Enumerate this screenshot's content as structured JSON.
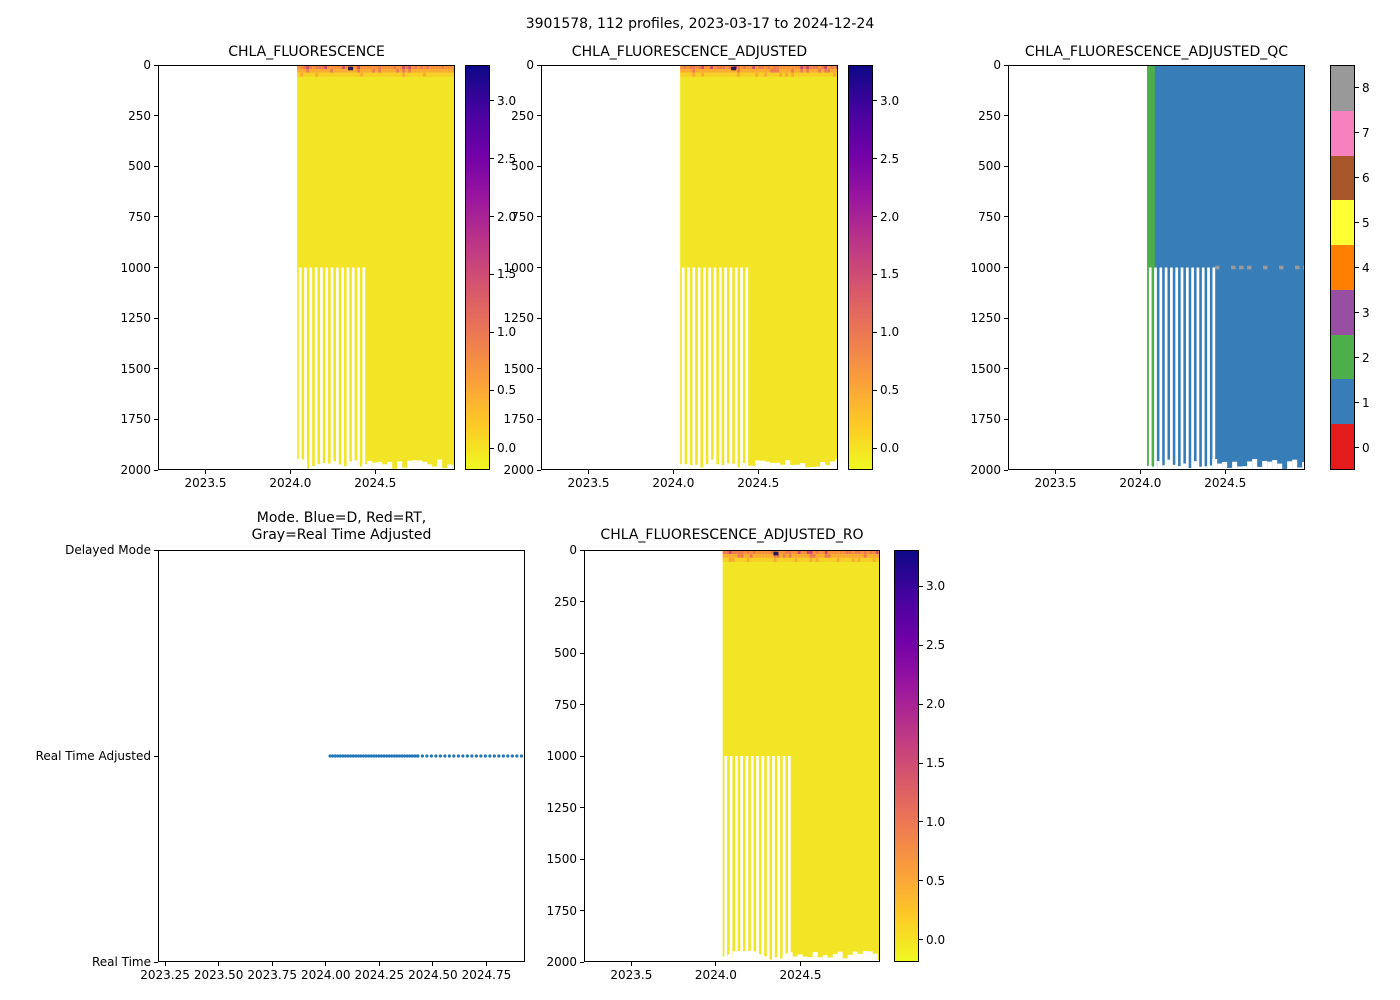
{
  "figure": {
    "title": "3901578, 112 profiles, 2023-03-17 to 2024-12-24"
  },
  "palette": {
    "plasma_top_to_bottom": [
      "#0d0887",
      "#46039f",
      "#7201a8",
      "#9c179e",
      "#bd3786",
      "#d8576b",
      "#ed7953",
      "#fa9e3b",
      "#fdc926",
      "#f0f921"
    ],
    "body_yellow": "#f2e525",
    "surface_red": "#cf4a6e",
    "surface_deep_orange": "#ed7953",
    "surface_orange": "#f78f3c",
    "surface_light_orange": "#fbaa33",
    "surface_yellow_orange": "#f7cf27",
    "dark_spot": "#2a1a52",
    "qc_blue": "#377eb8",
    "qc_green": "#4daf4a",
    "qc_gray": "#999999",
    "mode_dot": "#1f77b4",
    "set1": [
      "#e41a1c",
      "#377eb8",
      "#4daf4a",
      "#984ea3",
      "#ff7f00",
      "#ffff33",
      "#a65628",
      "#f781bf",
      "#999999"
    ]
  },
  "chart_data": [
    {
      "key": "chla",
      "type": "heatmap",
      "title": "CHLA_FLUORESCENCE",
      "x_range": [
        2023.22,
        2024.97
      ],
      "x_ticks": [
        {
          "v": 2023.5,
          "label": "2023.5"
        },
        {
          "v": 2024.0,
          "label": "2024.0"
        },
        {
          "v": 2024.5,
          "label": "2024.5"
        }
      ],
      "y_range": [
        2000,
        0
      ],
      "y_axis": "depth (m), 0 at top",
      "y_ticks": [
        {
          "v": 0,
          "label": "0"
        },
        {
          "v": 250,
          "label": "250"
        },
        {
          "v": 500,
          "label": "500"
        },
        {
          "v": 750,
          "label": "750"
        },
        {
          "v": 1000,
          "label": "1000"
        },
        {
          "v": 1250,
          "label": "1250"
        },
        {
          "v": 1500,
          "label": "1500"
        },
        {
          "v": 1750,
          "label": "1750"
        },
        {
          "v": 2000,
          "label": "2000"
        }
      ],
      "colorbar": {
        "kind": "continuous",
        "colormap": "plasma_reversed",
        "value_range": [
          -0.19,
          3.31
        ],
        "ticks": [
          {
            "v": 0,
            "label": "0.0"
          },
          {
            "v": 0.5,
            "label": "0.5"
          },
          {
            "v": 1,
            "label": "1.0"
          },
          {
            "v": 1.5,
            "label": "1.5"
          },
          {
            "v": 2,
            "label": "2.0"
          },
          {
            "v": 2.5,
            "label": "2.5"
          },
          {
            "v": 3,
            "label": "3.0"
          }
        ]
      },
      "profile_data": {
        "time_extent": [
          2024.04,
          2024.97
        ],
        "surface_bloom_depth_m": [
          0,
          58
        ],
        "surface_value_range": [
          0.3,
          3.2
        ],
        "background_value": 0.0,
        "shallow_window": [
          2024.05,
          2024.43
        ],
        "shallow_max_depth_m": 1000,
        "deep_max_depth_m": 1980,
        "dark_spot_time": 2024.34
      }
    },
    {
      "key": "adj",
      "type": "heatmap",
      "title": "CHLA_FLUORESCENCE_ADJUSTED",
      "x_range": [
        2023.22,
        2024.97
      ],
      "x_ticks": [
        {
          "v": 2023.5,
          "label": "2023.5"
        },
        {
          "v": 2024.0,
          "label": "2024.0"
        },
        {
          "v": 2024.5,
          "label": "2024.5"
        }
      ],
      "y_range": [
        2000,
        0
      ],
      "y_ticks": [
        {
          "v": 0,
          "label": "0"
        },
        {
          "v": 250,
          "label": "250"
        },
        {
          "v": 500,
          "label": "500"
        },
        {
          "v": 750,
          "label": "750"
        },
        {
          "v": 1000,
          "label": "1000"
        },
        {
          "v": 1250,
          "label": "1250"
        },
        {
          "v": 1500,
          "label": "1500"
        },
        {
          "v": 1750,
          "label": "1750"
        },
        {
          "v": 2000,
          "label": "2000"
        }
      ],
      "colorbar": {
        "kind": "continuous",
        "colormap": "plasma_reversed",
        "value_range": [
          -0.19,
          3.31
        ],
        "ticks": [
          {
            "v": 0,
            "label": "0.0"
          },
          {
            "v": 0.5,
            "label": "0.5"
          },
          {
            "v": 1,
            "label": "1.0"
          },
          {
            "v": 1.5,
            "label": "1.5"
          },
          {
            "v": 2,
            "label": "2.0"
          },
          {
            "v": 2.5,
            "label": "2.5"
          },
          {
            "v": 3,
            "label": "3.0"
          }
        ]
      },
      "profile_data": {
        "time_extent": [
          2024.04,
          2024.97
        ],
        "surface_bloom_depth_m": [
          0,
          58
        ],
        "surface_value_range": [
          0.3,
          3.2
        ],
        "background_value": 0.0,
        "shallow_window": [
          2024.05,
          2024.43
        ],
        "shallow_max_depth_m": 1000,
        "deep_max_depth_m": 1980,
        "dark_spot_time": 2024.34
      }
    },
    {
      "key": "qc",
      "type": "heatmap_qc",
      "title": "CHLA_FLUORESCENCE_ADJUSTED_QC",
      "x_range": [
        2023.22,
        2024.97
      ],
      "x_ticks": [
        {
          "v": 2023.5,
          "label": "2023.5"
        },
        {
          "v": 2024.0,
          "label": "2024.0"
        },
        {
          "v": 2024.5,
          "label": "2024.5"
        }
      ],
      "y_range": [
        2000,
        0
      ],
      "y_ticks": [
        {
          "v": 0,
          "label": "0"
        },
        {
          "v": 250,
          "label": "250"
        },
        {
          "v": 500,
          "label": "500"
        },
        {
          "v": 750,
          "label": "750"
        },
        {
          "v": 1000,
          "label": "1000"
        },
        {
          "v": 1250,
          "label": "1250"
        },
        {
          "v": 1500,
          "label": "1500"
        },
        {
          "v": 1750,
          "label": "1750"
        },
        {
          "v": 2000,
          "label": "2000"
        }
      ],
      "colorbar": {
        "kind": "discrete",
        "colormap": "Set1 (9 QC flags)",
        "ticks": [
          {
            "v": 0,
            "label": "0"
          },
          {
            "v": 1,
            "label": "1"
          },
          {
            "v": 2,
            "label": "2"
          },
          {
            "v": 3,
            "label": "3"
          },
          {
            "v": 4,
            "label": "4"
          },
          {
            "v": 5,
            "label": "5"
          },
          {
            "v": 6,
            "label": "6"
          },
          {
            "v": 7,
            "label": "7"
          },
          {
            "v": 8,
            "label": "8"
          }
        ]
      },
      "profile_data": {
        "time_extent": [
          2024.04,
          2024.97
        ],
        "dominant_flag": 1,
        "early_flag": {
          "value": 2,
          "time_window": [
            2024.04,
            2024.085
          ]
        },
        "gray_flag": {
          "value": 8,
          "depth_m": 1000,
          "time_window": [
            2024.44,
            2024.97
          ]
        },
        "shallow_window": [
          2024.05,
          2024.43
        ],
        "shallow_max_depth_m": 1000,
        "deep_max_depth_m": 1980
      }
    },
    {
      "key": "mode",
      "type": "scatter",
      "title_lines": [
        "Mode. Blue=D, Red=RT,",
        "Gray=Real Time Adjusted"
      ],
      "x_range": [
        2023.217,
        2024.93
      ],
      "x_ticks": [
        {
          "v": 2023.25,
          "label": "2023.25"
        },
        {
          "v": 2023.5,
          "label": "2023.50"
        },
        {
          "v": 2023.75,
          "label": "2023.75"
        },
        {
          "v": 2024.0,
          "label": "2024.00"
        },
        {
          "v": 2024.25,
          "label": "2024.25"
        },
        {
          "v": 2024.5,
          "label": "2024.50"
        },
        {
          "v": 2024.75,
          "label": "2024.75"
        }
      ],
      "y_categories": [
        "Delayed Mode",
        "Real Time Adjusted",
        "Real Time"
      ],
      "series": [
        {
          "name": "Real Time Adjusted profiles",
          "y_category": "Real Time Adjusted",
          "time_extent": [
            2024.02,
            2024.93
          ],
          "dense_until": 2024.43,
          "dense_step": 0.012,
          "sparse_step": 0.021,
          "color_key": "mode_dot"
        }
      ]
    },
    {
      "key": "ro",
      "type": "heatmap",
      "title": "CHLA_FLUORESCENCE_ADJUSTED_RO",
      "x_range": [
        2023.22,
        2024.97
      ],
      "x_ticks": [
        {
          "v": 2023.5,
          "label": "2023.5"
        },
        {
          "v": 2024.0,
          "label": "2024.0"
        },
        {
          "v": 2024.5,
          "label": "2024.5"
        }
      ],
      "y_range": [
        2000,
        0
      ],
      "y_ticks": [
        {
          "v": 0,
          "label": "0"
        },
        {
          "v": 250,
          "label": "250"
        },
        {
          "v": 500,
          "label": "500"
        },
        {
          "v": 750,
          "label": "750"
        },
        {
          "v": 1000,
          "label": "1000"
        },
        {
          "v": 1250,
          "label": "1250"
        },
        {
          "v": 1500,
          "label": "1500"
        },
        {
          "v": 1750,
          "label": "1750"
        },
        {
          "v": 2000,
          "label": "2000"
        }
      ],
      "colorbar": {
        "kind": "continuous",
        "colormap": "plasma_reversed",
        "value_range": [
          -0.19,
          3.31
        ],
        "ticks": [
          {
            "v": 0,
            "label": "0.0"
          },
          {
            "v": 0.5,
            "label": "0.5"
          },
          {
            "v": 1,
            "label": "1.0"
          },
          {
            "v": 1.5,
            "label": "1.5"
          },
          {
            "v": 2,
            "label": "2.0"
          },
          {
            "v": 2.5,
            "label": "2.5"
          },
          {
            "v": 3,
            "label": "3.0"
          }
        ]
      },
      "profile_data": {
        "time_extent": [
          2024.04,
          2024.97
        ],
        "surface_bloom_depth_m": [
          0,
          58
        ],
        "surface_value_range": [
          0.3,
          3.2
        ],
        "background_value": 0.0,
        "shallow_window": [
          2024.05,
          2024.43
        ],
        "shallow_max_depth_m": 1000,
        "deep_max_depth_m": 1980,
        "dark_spot_time": 2024.34
      }
    }
  ]
}
